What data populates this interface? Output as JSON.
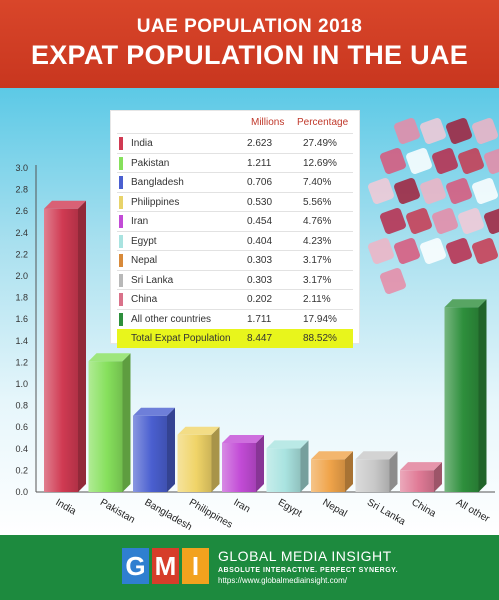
{
  "header": {
    "subtitle": "UAE POPULATION 2018",
    "title": "EXPAT POPULATION IN THE UAE"
  },
  "table": {
    "col_millions": "Millions",
    "col_percentage": "Percentage",
    "rows": [
      {
        "name": "India",
        "millions": "2.623",
        "percentage": "27.49%",
        "color": "#d03a52"
      },
      {
        "name": "Pakistan",
        "millions": "1.211",
        "percentage": "12.69%",
        "color": "#86e05c"
      },
      {
        "name": "Bangladesh",
        "millions": "0.706",
        "percentage": "7.40%",
        "color": "#4a5fd0"
      },
      {
        "name": "Philippines",
        "millions": "0.530",
        "percentage": "5.56%",
        "color": "#e8d36a"
      },
      {
        "name": "Iran",
        "millions": "0.454",
        "percentage": "4.76%",
        "color": "#c24bd6"
      },
      {
        "name": "Egypt",
        "millions": "0.404",
        "percentage": "4.23%",
        "color": "#a9e3e0"
      },
      {
        "name": "Nepal",
        "millions": "0.303",
        "percentage": "3.17%",
        "color": "#d88a3a"
      },
      {
        "name": "Sri Lanka",
        "millions": "0.303",
        "percentage": "3.17%",
        "color": "#b8b8b8"
      },
      {
        "name": "China",
        "millions": "0.202",
        "percentage": "2.11%",
        "color": "#d9728a"
      },
      {
        "name": "All other countries",
        "millions": "1.711",
        "percentage": "17.94%",
        "color": "#2e8f3c"
      }
    ],
    "total": {
      "name": "Total Expat Population",
      "millions": "8.447",
      "percentage": "88.52%"
    }
  },
  "chart_data": {
    "type": "bar",
    "categories": [
      "India",
      "Pakistan",
      "Bangladesh",
      "Philippines",
      "Iran",
      "Egypt",
      "Nepal",
      "Sri Lanka",
      "China",
      "All other"
    ],
    "values": [
      2.623,
      1.211,
      0.706,
      0.53,
      0.454,
      0.404,
      0.303,
      0.303,
      0.202,
      1.711
    ],
    "colors": [
      "#d03a52",
      "#86e05c",
      "#4a5fd0",
      "#f0d468",
      "#c24bd6",
      "#a9e3e0",
      "#f0a44a",
      "#c8c8c8",
      "#e07a96",
      "#2e8f3c"
    ],
    "yticks": [
      "0.0",
      "0.2",
      "0.4",
      "0.6",
      "0.8",
      "1.0",
      "1.2",
      "1.4",
      "1.6",
      "1.8",
      "2.0",
      "2.2",
      "2.4",
      "2.6",
      "2.8",
      "3.0"
    ],
    "ylim": [
      0,
      3
    ],
    "grid": false
  },
  "footer": {
    "logo_letters": [
      "G",
      "M",
      "I"
    ],
    "logo_colors": [
      "#2f7fd0",
      "#d63d2a",
      "#f2a21e"
    ],
    "brand_name": "GLOBAL MEDIA INSIGHT",
    "tagline": "ABSOLUTE INTERACTIVE. PERFECT SYNERGY.",
    "url": "https://www.globalmediainsight.com/"
  }
}
